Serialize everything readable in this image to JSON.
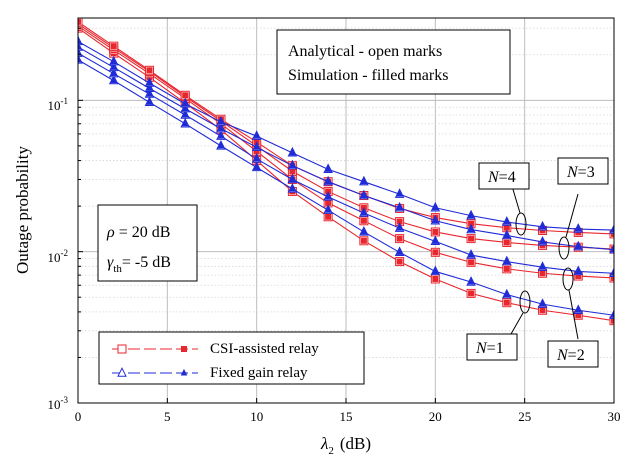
{
  "chart_data": {
    "type": "line",
    "xlabel_symbol": "λ",
    "xlabel_sub": "2",
    "xlabel_unit": "(dB)",
    "ylabel": "Outage probability",
    "xlim": [
      0,
      30
    ],
    "ylim": [
      0.001,
      0.35
    ],
    "yscale": "log",
    "grid": true,
    "x_ticks": [
      0,
      5,
      10,
      15,
      20,
      25,
      30
    ],
    "x_tick_labels": [
      "0",
      "5",
      "10",
      "15",
      "20",
      "25",
      "30"
    ],
    "y_tick_labels": [
      {
        "base": "10",
        "exp": "-3",
        "value": 0.001
      },
      {
        "base": "10",
        "exp": "-2",
        "value": 0.01
      },
      {
        "base": "10",
        "exp": "-1",
        "value": 0.1
      }
    ],
    "x": [
      0,
      2,
      4,
      6,
      8,
      10,
      12,
      14,
      16,
      18,
      20,
      22,
      24,
      26,
      28,
      30
    ],
    "series": [
      {
        "group": "csi",
        "n": "N=1",
        "color": "#e8262d",
        "values": [
          0.3,
          0.205,
          0.142,
          0.096,
          0.064,
          0.04,
          0.025,
          0.017,
          0.0118,
          0.0086,
          0.0066,
          0.0053,
          0.0046,
          0.0041,
          0.0038,
          0.0035
        ]
      },
      {
        "group": "csi",
        "n": "N=2",
        "color": "#e8262d",
        "values": [
          0.31,
          0.215,
          0.15,
          0.103,
          0.07,
          0.046,
          0.03,
          0.021,
          0.016,
          0.0122,
          0.0099,
          0.0085,
          0.0077,
          0.0072,
          0.0069,
          0.0067
        ]
      },
      {
        "group": "csi",
        "n": "N=3",
        "color": "#e8262d",
        "values": [
          0.32,
          0.222,
          0.155,
          0.106,
          0.073,
          0.05,
          0.034,
          0.025,
          0.0195,
          0.0158,
          0.0135,
          0.0122,
          0.0115,
          0.011,
          0.0107,
          0.0104
        ]
      },
      {
        "group": "csi",
        "n": "N=4",
        "color": "#e8262d",
        "values": [
          0.33,
          0.228,
          0.158,
          0.108,
          0.075,
          0.053,
          0.037,
          0.029,
          0.0235,
          0.0193,
          0.0168,
          0.0153,
          0.0144,
          0.0138,
          0.0134,
          0.0131
        ]
      },
      {
        "group": "fixed",
        "n": "N=1",
        "color": "#1f2bd6",
        "values": [
          0.185,
          0.135,
          0.097,
          0.07,
          0.05,
          0.036,
          0.026,
          0.0188,
          0.0135,
          0.0099,
          0.0074,
          0.0063,
          0.0052,
          0.0045,
          0.0041,
          0.0038
        ]
      },
      {
        "group": "fixed",
        "n": "N=2",
        "color": "#1f2bd6",
        "values": [
          0.205,
          0.15,
          0.11,
          0.08,
          0.058,
          0.041,
          0.03,
          0.023,
          0.018,
          0.0143,
          0.0117,
          0.0095,
          0.0086,
          0.0079,
          0.0074,
          0.0072
        ]
      },
      {
        "group": "fixed",
        "n": "N=3",
        "color": "#1f2bd6",
        "values": [
          0.225,
          0.165,
          0.12,
          0.088,
          0.065,
          0.049,
          0.037,
          0.029,
          0.0235,
          0.0195,
          0.016,
          0.014,
          0.0128,
          0.0116,
          0.0108,
          0.0103
        ]
      },
      {
        "group": "fixed",
        "n": "N=4",
        "color": "#1f2bd6",
        "values": [
          0.245,
          0.18,
          0.13,
          0.095,
          0.072,
          0.058,
          0.045,
          0.035,
          0.029,
          0.024,
          0.0195,
          0.0173,
          0.0157,
          0.0146,
          0.0141,
          0.0139
        ]
      }
    ],
    "annotations": {
      "box_line1": "Analytical - open marks",
      "box_line2": "Simulation - filled marks",
      "rho_sym": "ρ",
      "rho_rest": " = 20 dB",
      "gamma_sym": "γ",
      "gamma_sub": "th",
      "gamma_rest": "= -5 dB",
      "n_letter": "N",
      "n4": "=4",
      "n3": "=3",
      "n1": "=1",
      "n2": "=2"
    },
    "legend": {
      "placement": "bottom-left",
      "entries": [
        {
          "label": "CSI-assisted relay",
          "color": "#e8262d",
          "marker": "square"
        },
        {
          "label": "Fixed gain relay",
          "color": "#1f2bd6",
          "marker": "triangle"
        }
      ]
    }
  }
}
